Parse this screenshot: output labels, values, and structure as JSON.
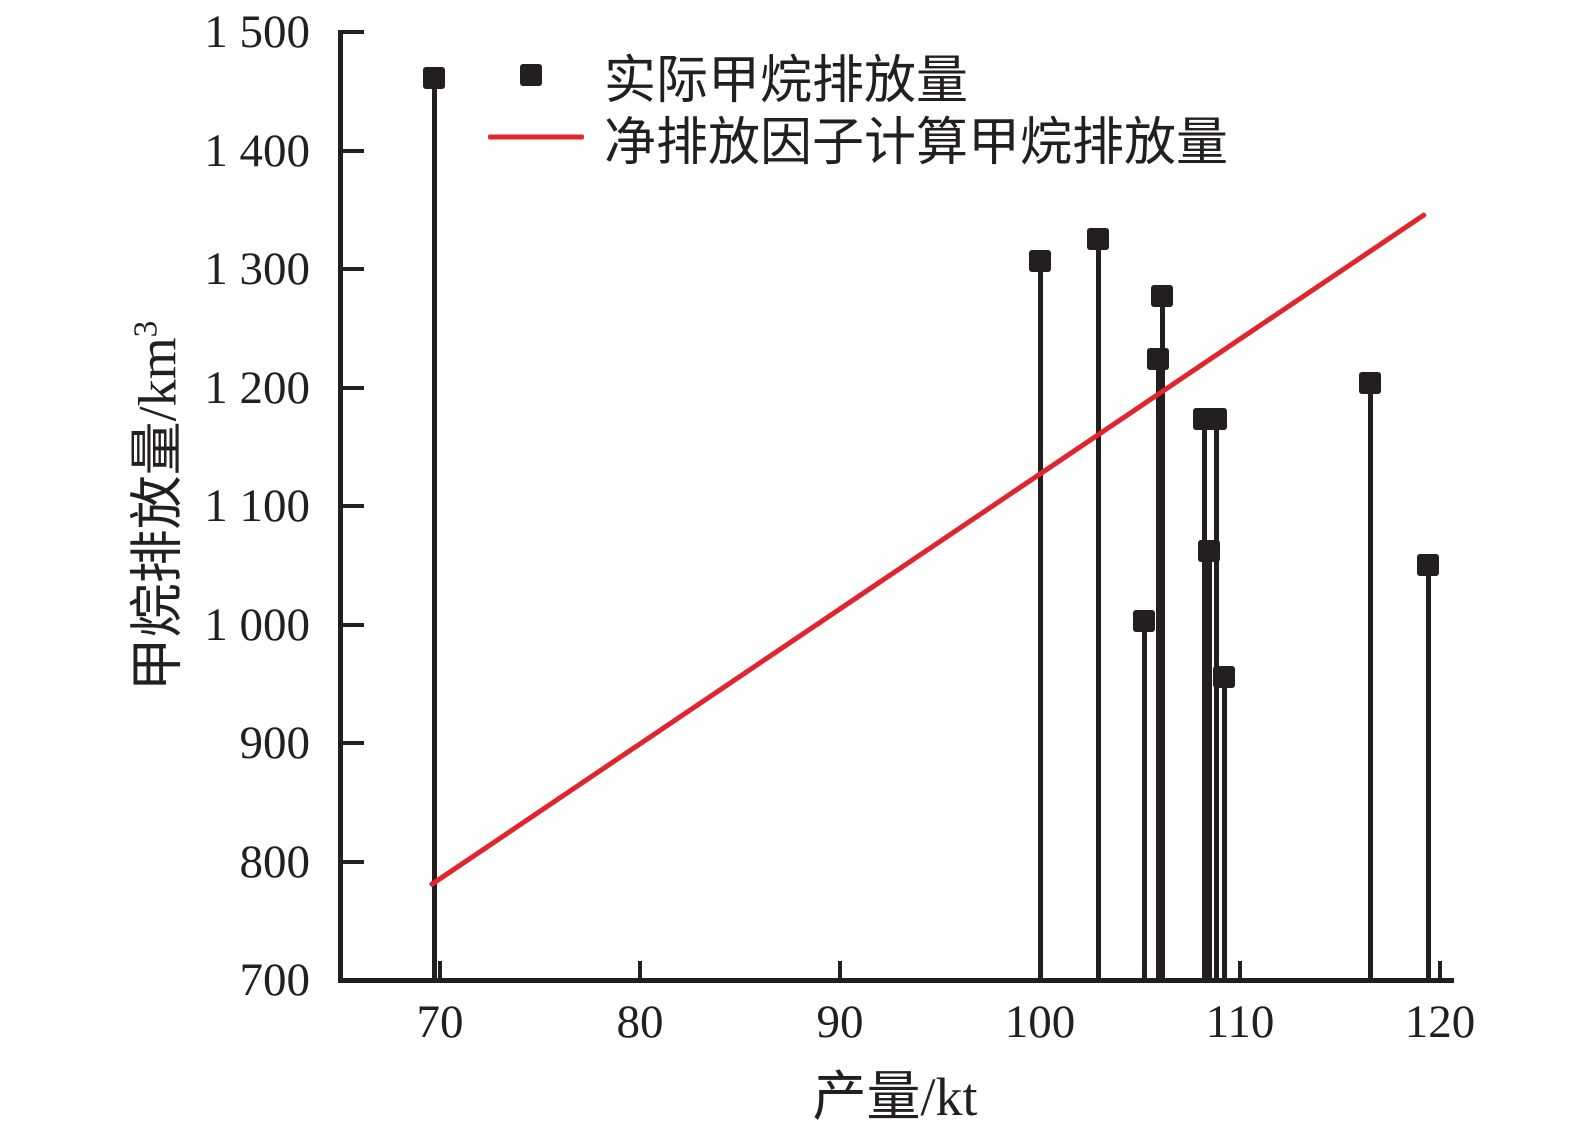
{
  "colors": {
    "ink": "#231f20",
    "line_red": "#e0262c",
    "background": "#ffffff"
  },
  "chart_data": {
    "type": "scatter",
    "subtype": "stem-plot-with-trend-line",
    "title": "",
    "xlabel": "产量/kt",
    "ylabel": "甲烷排放量/km³",
    "ylabel_base": "甲烷排放量/km",
    "ylabel_exponent": "3",
    "xlim": [
      65,
      120.5
    ],
    "ylim": [
      700,
      1500
    ],
    "grid": false,
    "ticks_direction": "in",
    "x_ticks": [
      70,
      80,
      90,
      100,
      110,
      120
    ],
    "x_tick_labels": [
      "70",
      "80",
      "90",
      "100",
      "110",
      "120"
    ],
    "y_ticks": [
      700,
      800,
      900,
      1000,
      1100,
      1200,
      1300,
      1400,
      1500
    ],
    "y_tick_labels": [
      "700",
      "800",
      "900",
      "1 000",
      "1 100",
      "1 200",
      "1 300",
      "1 400",
      "1 500"
    ],
    "legend_position": "upper left inside",
    "series": [
      {
        "name": "实际甲烷排放量",
        "type": "stem",
        "marker": "square",
        "color": "#231f20",
        "points": [
          [
            69.7,
            1461
          ],
          [
            100.0,
            1307
          ],
          [
            102.9,
            1325
          ],
          [
            105.2,
            1003
          ],
          [
            105.9,
            1224
          ],
          [
            106.1,
            1277
          ],
          [
            108.2,
            1173
          ],
          [
            108.45,
            1062
          ],
          [
            108.8,
            1173
          ],
          [
            109.2,
            956
          ],
          [
            116.5,
            1204
          ],
          [
            119.4,
            1050
          ]
        ]
      },
      {
        "name": "净排放因子计算甲烷排放量",
        "type": "line",
        "color": "#e0262c",
        "points": [
          [
            69.5,
            780
          ],
          [
            119.3,
            1347
          ]
        ]
      }
    ]
  }
}
